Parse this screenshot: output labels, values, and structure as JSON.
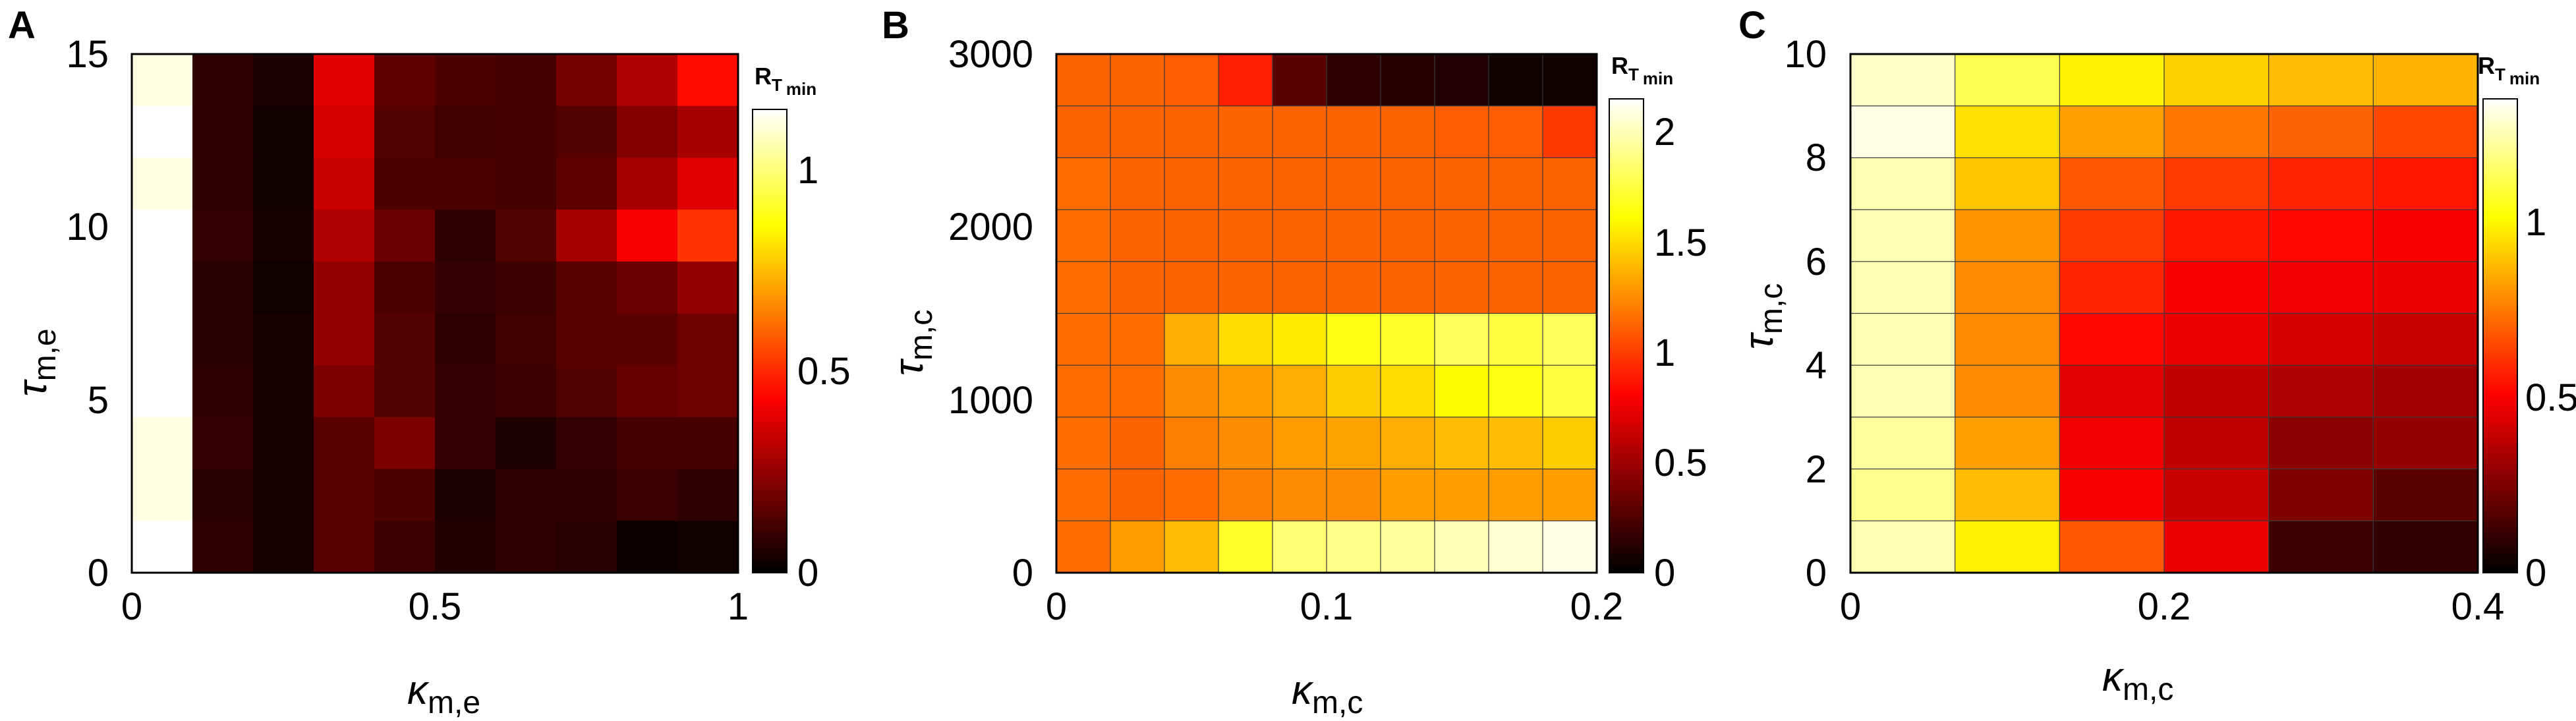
{
  "figure": {
    "panels": [
      {
        "letter": "A",
        "colorbar": {
          "title": "R",
          "title_sub": "T",
          "title_subsub": "min",
          "ticks": [
            "0",
            "0.5",
            "1"
          ],
          "max": 1.15
        },
        "xlabel": {
          "main": "κ",
          "sub": "m,e"
        },
        "ylabel": {
          "main": "τ",
          "sub": "m,e"
        },
        "xticks": [
          "0",
          "0.5",
          "1"
        ],
        "yticks": [
          "0",
          "5",
          "10",
          "15"
        ]
      },
      {
        "letter": "B",
        "colorbar": {
          "title": "R",
          "title_sub": "T",
          "title_subsub": "min",
          "ticks": [
            "0",
            "0.5",
            "1",
            "1.5",
            "2"
          ],
          "max": 2.15
        },
        "xlabel": {
          "main": "κ",
          "sub": "m,c"
        },
        "ylabel": {
          "main": "τ",
          "sub": "m,c"
        },
        "xticks": [
          "0",
          "0.1",
          "0.2"
        ],
        "yticks": [
          "0",
          "1000",
          "2000",
          "3000"
        ]
      },
      {
        "letter": "C",
        "colorbar": {
          "title": "R",
          "title_sub": "T",
          "title_subsub": "min",
          "ticks": [
            "0",
            "0.5",
            "1"
          ],
          "max": 1.35
        },
        "xlabel": {
          "main": "κ",
          "sub": "m,c"
        },
        "ylabel": {
          "main": "τ",
          "sub": "m,c"
        },
        "xticks": [
          "0",
          "0.2",
          "0.4"
        ],
        "yticks": [
          "0",
          "2",
          "4",
          "6",
          "8",
          "10"
        ]
      }
    ]
  },
  "chart_data": [
    {
      "type": "heatmap",
      "xlabel": "κ_m,e",
      "ylabel": "τ_m,e",
      "colorbar_label": "R_T_min",
      "colormap": "hot",
      "xlim": [
        0,
        1
      ],
      "ylim": [
        0,
        15
      ],
      "clim": [
        0,
        1.15
      ],
      "x_centers": [
        0.05,
        0.15,
        0.25,
        0.35,
        0.45,
        0.55,
        0.65,
        0.75,
        0.85,
        0.95
      ],
      "y_centers": [
        0.75,
        2.25,
        3.75,
        5.25,
        6.75,
        8.25,
        9.75,
        11.25,
        12.75,
        14.25
      ],
      "values_top_to_bottom": [
        [
          1.12,
          0.08,
          0.05,
          0.38,
          0.16,
          0.13,
          0.12,
          0.2,
          0.3,
          0.45
        ],
        [
          1.15,
          0.08,
          0.03,
          0.36,
          0.14,
          0.11,
          0.12,
          0.14,
          0.22,
          0.28
        ],
        [
          1.12,
          0.08,
          0.03,
          0.34,
          0.13,
          0.13,
          0.12,
          0.16,
          0.28,
          0.38
        ],
        [
          1.15,
          0.09,
          0.04,
          0.3,
          0.18,
          0.08,
          0.14,
          0.28,
          0.42,
          0.52
        ],
        [
          1.15,
          0.07,
          0.03,
          0.25,
          0.13,
          0.09,
          0.1,
          0.15,
          0.18,
          0.25
        ],
        [
          1.15,
          0.07,
          0.04,
          0.25,
          0.14,
          0.08,
          0.11,
          0.15,
          0.15,
          0.19
        ],
        [
          1.15,
          0.08,
          0.04,
          0.21,
          0.14,
          0.09,
          0.1,
          0.14,
          0.17,
          0.19
        ],
        [
          1.12,
          0.09,
          0.04,
          0.15,
          0.21,
          0.09,
          0.05,
          0.09,
          0.12,
          0.12
        ],
        [
          1.12,
          0.07,
          0.04,
          0.15,
          0.13,
          0.05,
          0.08,
          0.08,
          0.1,
          0.08
        ],
        [
          1.15,
          0.08,
          0.04,
          0.15,
          0.1,
          0.06,
          0.08,
          0.07,
          0.02,
          0.03
        ]
      ]
    },
    {
      "type": "heatmap",
      "xlabel": "κ_m,c",
      "ylabel": "τ_m,c",
      "colorbar_label": "R_T_min",
      "colormap": "hot",
      "xlim": [
        0,
        0.2
      ],
      "ylim": [
        0,
        3000
      ],
      "clim": [
        0,
        2.15
      ],
      "x_centers": [
        0.01,
        0.03,
        0.05,
        0.07,
        0.09,
        0.11,
        0.13,
        0.15,
        0.17,
        0.19
      ],
      "y_centers": [
        150,
        450,
        750,
        1050,
        1350,
        1650,
        1950,
        2250,
        2550,
        2850
      ],
      "values_top_to_bottom": [
        [
          1.12,
          1.12,
          1.1,
          0.9,
          0.28,
          0.15,
          0.12,
          0.1,
          0.05,
          0.05
        ],
        [
          1.12,
          1.12,
          1.12,
          1.12,
          1.12,
          1.12,
          1.12,
          1.1,
          1.1,
          0.98
        ],
        [
          1.15,
          1.12,
          1.12,
          1.12,
          1.12,
          1.12,
          1.12,
          1.12,
          1.12,
          1.12
        ],
        [
          1.15,
          1.12,
          1.12,
          1.12,
          1.12,
          1.12,
          1.12,
          1.12,
          1.12,
          1.12
        ],
        [
          1.15,
          1.12,
          1.12,
          1.12,
          1.12,
          1.12,
          1.12,
          1.12,
          1.12,
          1.12
        ],
        [
          1.15,
          1.15,
          1.35,
          1.5,
          1.55,
          1.65,
          1.7,
          1.8,
          1.75,
          1.8
        ],
        [
          1.15,
          1.15,
          1.25,
          1.3,
          1.35,
          1.45,
          1.5,
          1.6,
          1.65,
          1.75
        ],
        [
          1.15,
          1.12,
          1.2,
          1.25,
          1.3,
          1.32,
          1.35,
          1.4,
          1.4,
          1.45
        ],
        [
          1.15,
          1.12,
          1.15,
          1.2,
          1.25,
          1.25,
          1.3,
          1.3,
          1.3,
          1.3
        ],
        [
          1.15,
          1.3,
          1.4,
          1.7,
          1.85,
          1.9,
          1.95,
          2.0,
          2.05,
          2.1
        ]
      ]
    },
    {
      "type": "heatmap",
      "xlabel": "κ_m,c",
      "ylabel": "τ_m,c",
      "colorbar_label": "R_T_min",
      "colormap": "hot",
      "xlim": [
        0,
        0.4
      ],
      "ylim": [
        0,
        10
      ],
      "clim": [
        0,
        1.35
      ],
      "x_centers": [
        0.0333,
        0.1,
        0.1667,
        0.2333,
        0.3,
        0.3667
      ],
      "y_centers": [
        0.5,
        1.5,
        2.5,
        3.5,
        4.5,
        5.5,
        6.5,
        7.5,
        8.5,
        9.5
      ],
      "values_top_to_bottom": [
        [
          1.28,
          1.12,
          0.98,
          0.92,
          0.88,
          0.86
        ],
        [
          1.32,
          0.95,
          0.82,
          0.74,
          0.7,
          0.65
        ],
        [
          1.25,
          0.9,
          0.68,
          0.62,
          0.58,
          0.55
        ],
        [
          1.25,
          0.8,
          0.62,
          0.55,
          0.52,
          0.5
        ],
        [
          1.25,
          0.78,
          0.58,
          0.5,
          0.48,
          0.47
        ],
        [
          1.25,
          0.78,
          0.52,
          0.47,
          0.43,
          0.4
        ],
        [
          1.25,
          0.78,
          0.45,
          0.38,
          0.35,
          0.32
        ],
        [
          1.22,
          0.82,
          0.48,
          0.38,
          0.28,
          0.3
        ],
        [
          1.2,
          0.88,
          0.5,
          0.4,
          0.25,
          0.18
        ],
        [
          1.25,
          0.98,
          0.68,
          0.47,
          0.12,
          0.1
        ]
      ]
    }
  ]
}
